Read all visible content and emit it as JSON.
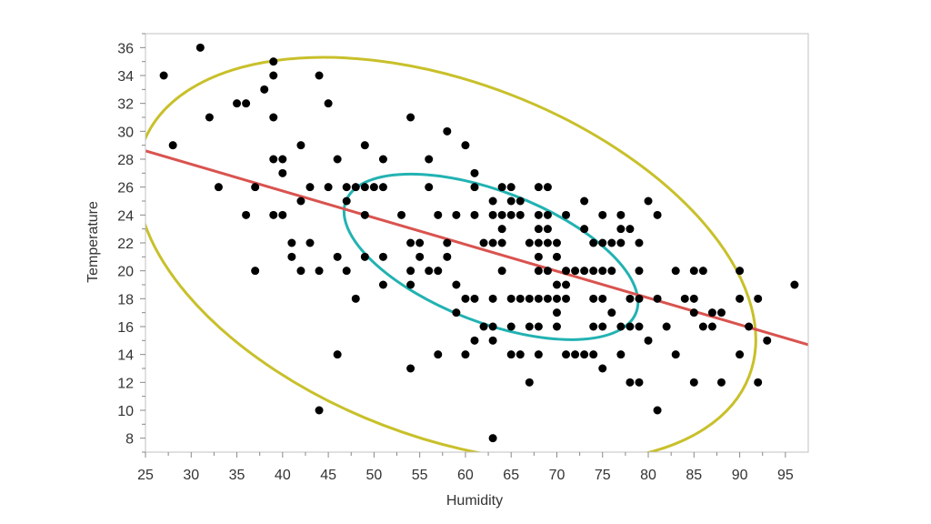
{
  "chart_data": {
    "type": "scatter",
    "xlabel": "Humidity",
    "ylabel": "Temperature",
    "xlim": [
      25,
      97.5
    ],
    "ylim": [
      7,
      37
    ],
    "x_ticks": [
      25,
      30,
      35,
      40,
      45,
      50,
      55,
      60,
      65,
      70,
      75,
      80,
      85,
      90,
      95
    ],
    "y_ticks": [
      8,
      10,
      12,
      14,
      16,
      18,
      20,
      22,
      24,
      26,
      28,
      30,
      32,
      34,
      36
    ],
    "grid": false,
    "points": [
      [
        27,
        34
      ],
      [
        28,
        29
      ],
      [
        31,
        36
      ],
      [
        32,
        31
      ],
      [
        33,
        26
      ],
      [
        35,
        32
      ],
      [
        36,
        32
      ],
      [
        36,
        24
      ],
      [
        37,
        26
      ],
      [
        37,
        20
      ],
      [
        38,
        33
      ],
      [
        39,
        35
      ],
      [
        39,
        34
      ],
      [
        39,
        31
      ],
      [
        39,
        28
      ],
      [
        39,
        24
      ],
      [
        40,
        28
      ],
      [
        40,
        27
      ],
      [
        40,
        24
      ],
      [
        41,
        22
      ],
      [
        41,
        21
      ],
      [
        42,
        29
      ],
      [
        42,
        25
      ],
      [
        42,
        20
      ],
      [
        43,
        26
      ],
      [
        43,
        22
      ],
      [
        44,
        34
      ],
      [
        44,
        20
      ],
      [
        44,
        10
      ],
      [
        45,
        32
      ],
      [
        45,
        26
      ],
      [
        46,
        28
      ],
      [
        46,
        21
      ],
      [
        46,
        14
      ],
      [
        47,
        26
      ],
      [
        47,
        25
      ],
      [
        47,
        20
      ],
      [
        48,
        26
      ],
      [
        48,
        18
      ],
      [
        49,
        29
      ],
      [
        49,
        26
      ],
      [
        49,
        24
      ],
      [
        49,
        21
      ],
      [
        50,
        26
      ],
      [
        51,
        28
      ],
      [
        51,
        26
      ],
      [
        51,
        21
      ],
      [
        51,
        19
      ],
      [
        53,
        24
      ],
      [
        54,
        31
      ],
      [
        54,
        22
      ],
      [
        54,
        20
      ],
      [
        54,
        19
      ],
      [
        54,
        13
      ],
      [
        55,
        22
      ],
      [
        55,
        21
      ],
      [
        56,
        28
      ],
      [
        56,
        26
      ],
      [
        56,
        20
      ],
      [
        57,
        24
      ],
      [
        57,
        20
      ],
      [
        57,
        14
      ],
      [
        58,
        30
      ],
      [
        58,
        22
      ],
      [
        58,
        21
      ],
      [
        59,
        24
      ],
      [
        59,
        19
      ],
      [
        59,
        17
      ],
      [
        60,
        29
      ],
      [
        60,
        18
      ],
      [
        60,
        14
      ],
      [
        61,
        27
      ],
      [
        61,
        26
      ],
      [
        61,
        24
      ],
      [
        61,
        18
      ],
      [
        61,
        15
      ],
      [
        62,
        22
      ],
      [
        62,
        16
      ],
      [
        63,
        25
      ],
      [
        63,
        24
      ],
      [
        63,
        22
      ],
      [
        63,
        18
      ],
      [
        63,
        16
      ],
      [
        63,
        15
      ],
      [
        63,
        8
      ],
      [
        64,
        26
      ],
      [
        64,
        24
      ],
      [
        64,
        23
      ],
      [
        64,
        22
      ],
      [
        64,
        20
      ],
      [
        65,
        26
      ],
      [
        65,
        25
      ],
      [
        65,
        24
      ],
      [
        65,
        18
      ],
      [
        65,
        16
      ],
      [
        65,
        14
      ],
      [
        66,
        25
      ],
      [
        66,
        24
      ],
      [
        66,
        18
      ],
      [
        66,
        14
      ],
      [
        67,
        22
      ],
      [
        67,
        18
      ],
      [
        67,
        16
      ],
      [
        67,
        12
      ],
      [
        68,
        26
      ],
      [
        68,
        24
      ],
      [
        68,
        23
      ],
      [
        68,
        22
      ],
      [
        68,
        21
      ],
      [
        68,
        20
      ],
      [
        68,
        18
      ],
      [
        68,
        16
      ],
      [
        68,
        14
      ],
      [
        69,
        26
      ],
      [
        69,
        24
      ],
      [
        69,
        23
      ],
      [
        69,
        22
      ],
      [
        69,
        20
      ],
      [
        69,
        18
      ],
      [
        70,
        22
      ],
      [
        70,
        21
      ],
      [
        70,
        19
      ],
      [
        70,
        18
      ],
      [
        70,
        17
      ],
      [
        70,
        16
      ],
      [
        71,
        24
      ],
      [
        71,
        20
      ],
      [
        71,
        19
      ],
      [
        71,
        18
      ],
      [
        71,
        14
      ],
      [
        72,
        20
      ],
      [
        72,
        14
      ],
      [
        73,
        25
      ],
      [
        73,
        23
      ],
      [
        73,
        20
      ],
      [
        73,
        14
      ],
      [
        74,
        22
      ],
      [
        74,
        20
      ],
      [
        74,
        18
      ],
      [
        74,
        16
      ],
      [
        74,
        14
      ],
      [
        75,
        24
      ],
      [
        75,
        22
      ],
      [
        75,
        20
      ],
      [
        75,
        18
      ],
      [
        75,
        16
      ],
      [
        75,
        13
      ],
      [
        76,
        22
      ],
      [
        76,
        20
      ],
      [
        76,
        17
      ],
      [
        77,
        24
      ],
      [
        77,
        23
      ],
      [
        77,
        22
      ],
      [
        77,
        16
      ],
      [
        77,
        14
      ],
      [
        78,
        23
      ],
      [
        78,
        18
      ],
      [
        78,
        16
      ],
      [
        78,
        12
      ],
      [
        79,
        22
      ],
      [
        79,
        20
      ],
      [
        79,
        18
      ],
      [
        79,
        16
      ],
      [
        79,
        12
      ],
      [
        80,
        25
      ],
      [
        80,
        15
      ],
      [
        81,
        24
      ],
      [
        81,
        18
      ],
      [
        81,
        10
      ],
      [
        82,
        16
      ],
      [
        83,
        20
      ],
      [
        83,
        14
      ],
      [
        84,
        18
      ],
      [
        85,
        20
      ],
      [
        85,
        18
      ],
      [
        85,
        17
      ],
      [
        85,
        12
      ],
      [
        86,
        20
      ],
      [
        86,
        16
      ],
      [
        87,
        17
      ],
      [
        87,
        16
      ],
      [
        88,
        17
      ],
      [
        88,
        12
      ],
      [
        90,
        20
      ],
      [
        90,
        18
      ],
      [
        90,
        14
      ],
      [
        91,
        16
      ],
      [
        92,
        18
      ],
      [
        92,
        12
      ],
      [
        93,
        15
      ],
      [
        96,
        19
      ]
    ],
    "fit_line": {
      "color": "#d9534f",
      "x": [
        25,
        97.5
      ],
      "y": [
        28.6,
        14.7
      ]
    },
    "ellipses": [
      {
        "color": "#c8c02a",
        "center": [
          57.9,
          20.8
        ],
        "semi_axes": [
          35.5,
          12.7
        ],
        "rotation_deg": 21
      },
      {
        "color": "#22b2b2",
        "center": [
          62.8,
          21.0
        ],
        "semi_axes": [
          17.0,
          4.7
        ],
        "rotation_deg": 21
      }
    ],
    "point_color": "#000000",
    "frame_color": "#c0c0c0"
  }
}
